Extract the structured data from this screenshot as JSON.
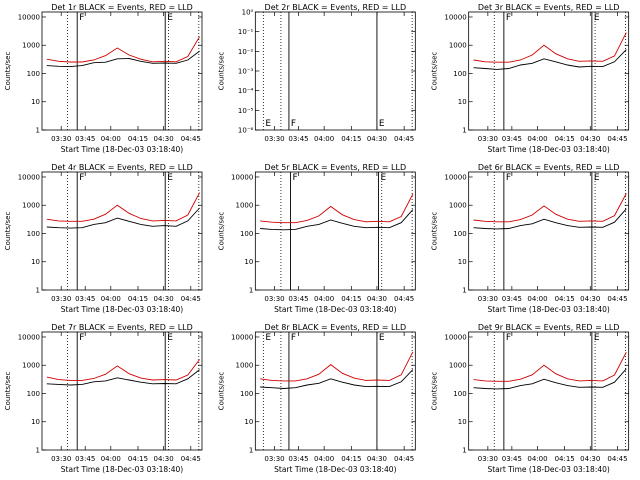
{
  "chart_data": [
    {
      "type": "line",
      "title": "Det 1r BLACK = Events, RED = LLD",
      "ylabel": "Counts/sec",
      "xlabel": "Start Time (18-Dec-03 03:18:40)",
      "xticks": [
        "03:30",
        "03:45",
        "04:00",
        "04:15",
        "04:30",
        "04:45"
      ],
      "yticks": [
        "1",
        "10",
        "100",
        "1000",
        "10000"
      ],
      "ylim": [
        1,
        15000
      ],
      "yscale": "log",
      "markers": [
        "F",
        "E"
      ],
      "series": [
        {
          "name": "Events",
          "color": "#000000",
          "values": [
            190,
            180,
            175,
            190,
            240,
            250,
            330,
            340,
            270,
            230,
            235,
            230,
            300,
            620
          ]
        },
        {
          "name": "LLD",
          "color": "#d00000",
          "values": [
            320,
            270,
            255,
            255,
            300,
            430,
            800,
            450,
            320,
            260,
            270,
            260,
            400,
            2000
          ]
        }
      ]
    },
    {
      "type": "line",
      "title": "Det 2r BLACK = Events, RED = LLD",
      "ylabel": "Counts/sec",
      "xlabel": "",
      "xticks": [
        "03:30",
        "03:45",
        "04:00",
        "04:15",
        "04:30",
        "04:45"
      ],
      "yticks": [
        "10⁰",
        "10⁻¹",
        "10⁻²",
        "10⁻³",
        "10⁻⁴",
        "10⁻⁵",
        "10⁻⁶"
      ],
      "ylim": [
        1e-06,
        1
      ],
      "yscale": "log",
      "markers": [
        "E",
        "F",
        "E"
      ],
      "series": []
    },
    {
      "type": "line",
      "title": "Det 3r BLACK = Events, RED = LLD",
      "ylabel": "Counts/sec",
      "xlabel": "Start Time (18-Dec-03 03:18:40)",
      "xticks": [
        "03:30",
        "03:45",
        "04:00",
        "04:15",
        "04:30",
        "04:45"
      ],
      "yticks": [
        "1",
        "10",
        "100",
        "1000",
        "10000"
      ],
      "ylim": [
        1,
        15000
      ],
      "yscale": "log",
      "markers": [
        "F",
        "E"
      ],
      "series": [
        {
          "name": "Events",
          "color": "#000000",
          "values": [
            160,
            150,
            140,
            150,
            200,
            230,
            330,
            260,
            200,
            170,
            180,
            175,
            260,
            700
          ]
        },
        {
          "name": "LLD",
          "color": "#d00000",
          "values": [
            300,
            260,
            250,
            250,
            300,
            450,
            1000,
            500,
            330,
            270,
            280,
            270,
            420,
            2800
          ]
        }
      ]
    },
    {
      "type": "line",
      "title": "Det 4r BLACK = Events, RED = LLD",
      "ylabel": "Counts/sec",
      "xlabel": "Start Time (18-Dec-03 03:18:40)",
      "xticks": [
        "03:30",
        "03:45",
        "04:00",
        "04:15",
        "04:30",
        "04:45"
      ],
      "yticks": [
        "1",
        "10",
        "100",
        "1000",
        "10000"
      ],
      "ylim": [
        1,
        15000
      ],
      "yscale": "log",
      "markers": [
        "F",
        "E"
      ],
      "series": [
        {
          "name": "Events",
          "color": "#000000",
          "values": [
            170,
            160,
            155,
            160,
            210,
            240,
            350,
            270,
            210,
            180,
            190,
            180,
            280,
            800
          ]
        },
        {
          "name": "LLD",
          "color": "#d00000",
          "values": [
            320,
            280,
            270,
            270,
            320,
            480,
            1000,
            520,
            340,
            280,
            290,
            280,
            450,
            2800
          ]
        }
      ]
    },
    {
      "type": "line",
      "title": "Det 5r BLACK = Events, RED = LLD",
      "ylabel": "Counts/sec",
      "xlabel": "Start Time (18-Dec-03 03:18:40)",
      "xticks": [
        "03:30",
        "03:45",
        "04:00",
        "04:15",
        "04:30",
        "04:45"
      ],
      "yticks": [
        "1",
        "10",
        "100",
        "1000",
        "10000"
      ],
      "ylim": [
        1,
        15000
      ],
      "yscale": "log",
      "markers": [
        "F",
        "E"
      ],
      "series": [
        {
          "name": "Events",
          "color": "#000000",
          "values": [
            150,
            140,
            135,
            140,
            180,
            210,
            300,
            230,
            180,
            160,
            165,
            160,
            240,
            700
          ]
        },
        {
          "name": "LLD",
          "color": "#d00000",
          "values": [
            280,
            250,
            240,
            240,
            290,
            420,
            900,
            460,
            310,
            260,
            270,
            260,
            400,
            2500
          ]
        }
      ]
    },
    {
      "type": "line",
      "title": "Det 6r BLACK = Events, RED = LLD",
      "ylabel": "Counts/sec",
      "xlabel": "Start Time (18-Dec-03 03:18:40)",
      "xticks": [
        "03:30",
        "03:45",
        "04:00",
        "04:15",
        "04:30",
        "04:45"
      ],
      "yticks": [
        "1",
        "10",
        "100",
        "1000",
        "10000"
      ],
      "ylim": [
        1,
        15000
      ],
      "yscale": "log",
      "markers": [
        "F",
        "E"
      ],
      "series": [
        {
          "name": "Events",
          "color": "#000000",
          "values": [
            160,
            150,
            145,
            150,
            190,
            220,
            320,
            240,
            190,
            165,
            170,
            165,
            250,
            750
          ]
        },
        {
          "name": "LLD",
          "color": "#d00000",
          "values": [
            300,
            270,
            260,
            260,
            310,
            450,
            950,
            480,
            320,
            270,
            280,
            270,
            430,
            2600
          ]
        }
      ]
    },
    {
      "type": "line",
      "title": "Det 7r BLACK = Events, RED = LLD",
      "ylabel": "Counts/sec",
      "xlabel": "Start Time (18-Dec-03 03:18:40)",
      "xticks": [
        "03:30",
        "03:45",
        "04:00",
        "04:15",
        "04:30",
        "04:45"
      ],
      "yticks": [
        "1",
        "10",
        "100",
        "1000",
        "10000"
      ],
      "ylim": [
        1,
        15000
      ],
      "yscale": "log",
      "markers": [
        "F",
        "E"
      ],
      "series": [
        {
          "name": "Events",
          "color": "#000000",
          "values": [
            220,
            210,
            200,
            210,
            260,
            280,
            360,
            300,
            250,
            220,
            225,
            220,
            330,
            700
          ]
        },
        {
          "name": "LLD",
          "color": "#d00000",
          "values": [
            380,
            310,
            290,
            290,
            340,
            480,
            950,
            500,
            350,
            300,
            310,
            300,
            450,
            1600
          ]
        }
      ]
    },
    {
      "type": "line",
      "title": "Det 8r BLACK = Events, RED = LLD",
      "ylabel": "Counts/sec",
      "xlabel": "Start Time (18-Dec-03 03:18:40)",
      "xticks": [
        "03:30",
        "03:45",
        "04:00",
        "04:15",
        "04:30",
        "04:45"
      ],
      "yticks": [
        "1",
        "10",
        "100",
        "1000",
        "10000"
      ],
      "ylim": [
        1,
        15000
      ],
      "yscale": "log",
      "markers": [
        "E",
        "F",
        "E"
      ],
      "series": [
        {
          "name": "Events",
          "color": "#000000",
          "values": [
            170,
            160,
            150,
            160,
            200,
            230,
            330,
            250,
            200,
            175,
            180,
            175,
            260,
            700
          ]
        },
        {
          "name": "LLD",
          "color": "#d00000",
          "values": [
            330,
            290,
            280,
            280,
            330,
            480,
            1050,
            520,
            350,
            290,
            300,
            290,
            460,
            3000
          ]
        }
      ]
    },
    {
      "type": "line",
      "title": "Det 9r BLACK = Events, RED = LLD",
      "ylabel": "Counts/sec",
      "xlabel": "Start Time (18-Dec-03 03:18:40)",
      "xticks": [
        "03:30",
        "03:45",
        "04:00",
        "04:15",
        "04:30",
        "04:45"
      ],
      "yticks": [
        "1",
        "10",
        "100",
        "1000",
        "10000"
      ],
      "ylim": [
        1,
        15000
      ],
      "yscale": "log",
      "markers": [
        "F",
        "E"
      ],
      "series": [
        {
          "name": "Events",
          "color": "#000000",
          "values": [
            160,
            150,
            145,
            150,
            190,
            220,
            320,
            240,
            190,
            165,
            170,
            165,
            250,
            750
          ]
        },
        {
          "name": "LLD",
          "color": "#d00000",
          "values": [
            310,
            280,
            270,
            270,
            320,
            460,
            1000,
            500,
            330,
            280,
            290,
            280,
            450,
            2900
          ]
        }
      ]
    }
  ]
}
